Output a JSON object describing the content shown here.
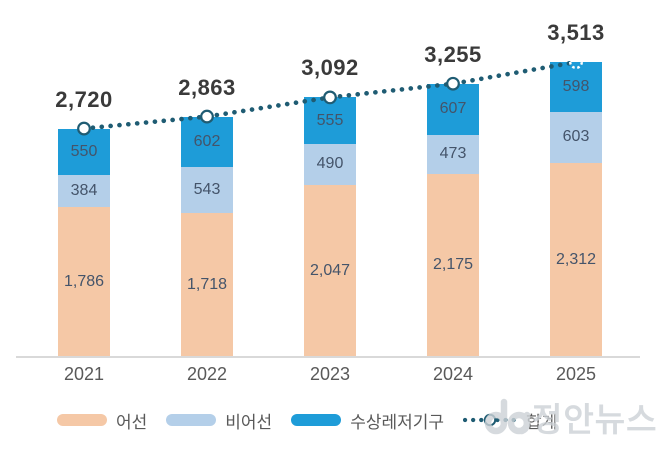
{
  "chart_data": {
    "type": "bar",
    "subtype": "stacked-bars-with-total-line",
    "title": "",
    "categories": [
      "2021",
      "2022",
      "2023",
      "2024",
      "2025"
    ],
    "series": [
      {
        "name": "어선",
        "color": "#F5C8A6",
        "values": [
          1786,
          1718,
          2047,
          2175,
          2312
        ]
      },
      {
        "name": "비어선",
        "color": "#B4CFE9",
        "values": [
          384,
          543,
          490,
          473,
          603
        ]
      },
      {
        "name": "수상레저기구",
        "color": "#1E9CD8",
        "values": [
          550,
          602,
          555,
          607,
          598
        ]
      }
    ],
    "total_line": {
      "name": "합계",
      "values": [
        2720,
        2863,
        3092,
        3255,
        3513
      ],
      "color": "#1F5C73",
      "style": "dotted",
      "marker": "white-circle"
    },
    "value_labels": true,
    "ylim": [
      0,
      3600
    ],
    "grid": false,
    "axis_line_color": "#D9D9D9",
    "legend_position": "bottom"
  },
  "watermark": {
    "text": "정안뉴스"
  }
}
